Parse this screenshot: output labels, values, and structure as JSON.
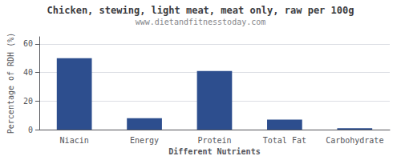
{
  "chart_data": {
    "type": "bar",
    "title": "Chicken, stewing, light meat, meat only, raw per 100g",
    "subtitle": "www.dietandfitnesstoday.com",
    "xlabel": "Different Nutrients",
    "ylabel": "Percentage of RDH (%)",
    "categories": [
      "Niacin",
      "Energy",
      "Protein",
      "Total Fat",
      "Carbohydrate"
    ],
    "values": [
      50,
      8,
      41,
      7,
      1
    ],
    "color": "#2d4e8e",
    "ylim": [
      0,
      65
    ],
    "yticks": [
      0,
      20,
      40,
      60
    ],
    "grid": true
  }
}
